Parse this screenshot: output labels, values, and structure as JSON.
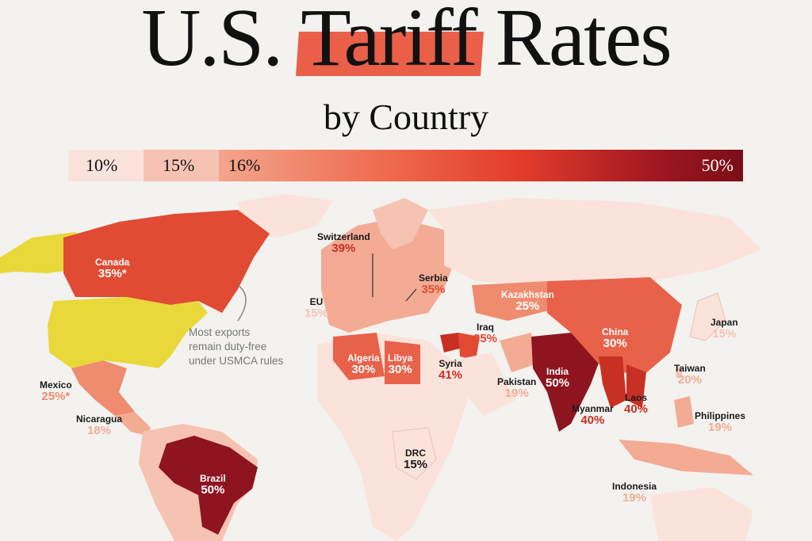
{
  "title": {
    "pre": "U.S. ",
    "highlight": "Tariff",
    "post": " Rates"
  },
  "subtitle": "by Country",
  "legend": {
    "items": [
      "10%",
      "15%",
      "16%",
      "50%"
    ]
  },
  "note": {
    "line1": "Most exports",
    "line2": "remain duty-free",
    "line3": "under USMCA rules"
  },
  "colors": {
    "r10": "#fbe3db",
    "r15": "#f6c3b2",
    "r19": "#f3ab94",
    "r25": "#ef8b6f",
    "r30": "#e8624a",
    "r35": "#e14b33",
    "r40": "#c83023",
    "r50": "#8e1420",
    "none": "#e8d83a",
    "accent": "#e8523a"
  },
  "countries": [
    {
      "name": "Canada",
      "value": "35%*"
    },
    {
      "name": "Mexico",
      "value": "25%*"
    },
    {
      "name": "Nicaragua",
      "value": "18%"
    },
    {
      "name": "Brazil",
      "value": "50%"
    },
    {
      "name": "Switzerland",
      "value": "39%"
    },
    {
      "name": "EU",
      "value": "15%"
    },
    {
      "name": "Serbia",
      "value": "35%"
    },
    {
      "name": "Algeria",
      "value": "30%"
    },
    {
      "name": "Libya",
      "value": "30%"
    },
    {
      "name": "Iraq",
      "value": "35%"
    },
    {
      "name": "Syria",
      "value": "41%"
    },
    {
      "name": "Kazakhstan",
      "value": "25%"
    },
    {
      "name": "China",
      "value": "30%"
    },
    {
      "name": "Japan",
      "value": "15%"
    },
    {
      "name": "Taiwan",
      "value": "20%"
    },
    {
      "name": "India",
      "value": "50%"
    },
    {
      "name": "Pakistan",
      "value": "19%"
    },
    {
      "name": "Laos",
      "value": "40%"
    },
    {
      "name": "Myanmar",
      "value": "40%"
    },
    {
      "name": "Philippines",
      "value": "19%"
    },
    {
      "name": "DRC",
      "value": "15%"
    },
    {
      "name": "Indonesia",
      "value": "19%"
    }
  ]
}
